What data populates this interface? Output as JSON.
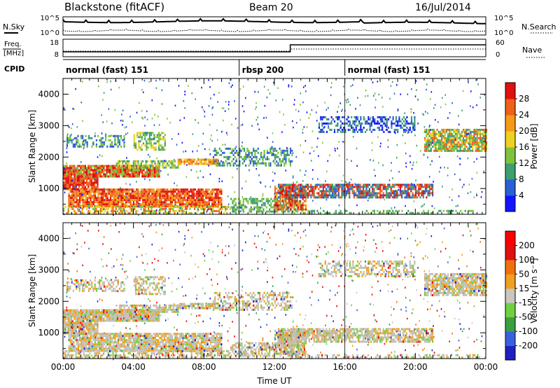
{
  "header": {
    "station": "Blackstone (fitACF)",
    "beam": "Beam 20",
    "date": "16/Jul/2014"
  },
  "noise_panel": {
    "left_label": "N.Sky",
    "right_label": "N.Search",
    "left_ticks": [
      "10^5",
      "10^0"
    ],
    "right_ticks": [
      "10^5",
      "10^0"
    ]
  },
  "freq_panel": {
    "left_label_1": "Freq.",
    "left_label_2": "[MHz]",
    "right_label": "Nave",
    "left_ticks": [
      "18",
      "8"
    ],
    "right_ticks": [
      "60",
      "0"
    ]
  },
  "cpid_panel": {
    "label": "CPID",
    "segments": [
      {
        "name": "normal (fast) 151",
        "start_hour": 0
      },
      {
        "name": "rbsp 200",
        "start_hour": 10
      },
      {
        "name": "normal (fast) 151",
        "start_hour": 16
      }
    ]
  },
  "chart_data": [
    {
      "type": "heatmap",
      "quantity": "power",
      "ylabel": "Slant Range [km]",
      "xlabel": "",
      "ylim": [
        180,
        4500
      ],
      "xlim_hours": [
        0,
        24
      ],
      "y_ticks": [
        1000,
        2000,
        3000,
        4000
      ],
      "colorbar_label": "Power [dB]",
      "colorbar_ticks": [
        "4",
        "8",
        "12",
        "16",
        "20",
        "24",
        "28"
      ],
      "colorbar_colors": [
        "#1414ff",
        "#2a5fd6",
        "#3d9e6e",
        "#7fc23e",
        "#f0d020",
        "#f59a18",
        "#f06018",
        "#e01010"
      ]
    },
    {
      "type": "heatmap",
      "quantity": "velocity",
      "ylabel": "Slant Range [km]",
      "xlabel": "Time UT",
      "ylim": [
        180,
        4500
      ],
      "xlim_hours": [
        0,
        24
      ],
      "y_ticks": [
        1000,
        2000,
        3000,
        4000
      ],
      "x_tick_labels": [
        "00:00",
        "04:00",
        "08:00",
        "12:00",
        "16:00",
        "20:00",
        "00:00"
      ],
      "colorbar_label": "Velocity [m s⁻¹]",
      "colorbar_ticks": [
        "200",
        "100",
        "50",
        "15",
        "-15",
        "-50",
        "-100",
        "-200"
      ],
      "colorbar_colors": [
        "#2020c0",
        "#3a60e0",
        "#3aa040",
        "#70d040",
        "#c8c8c0",
        "#f0a020",
        "#f07010",
        "#e01010",
        "#ff0000"
      ]
    }
  ],
  "colors": {
    "ground_scatter": "#c0c0b8",
    "axis": "#000000"
  }
}
